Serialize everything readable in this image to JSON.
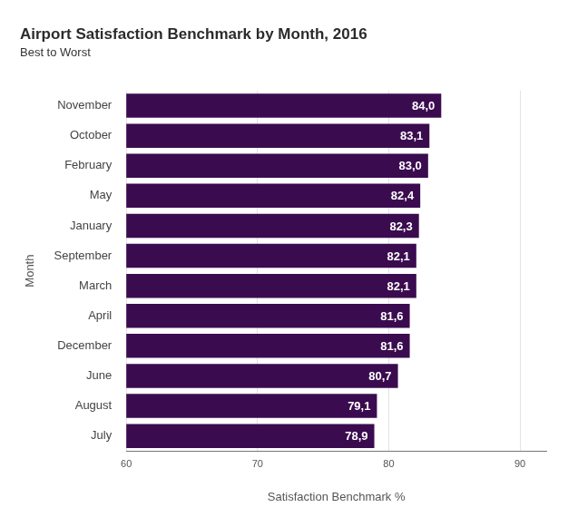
{
  "chart_data": {
    "type": "bar",
    "orientation": "horizontal",
    "title": "Airport Satisfaction Benchmark by Month, 2016",
    "subtitle": "Best to Worst",
    "x_label": "Satisfaction Benchmark %",
    "y_label": "Month",
    "categories": [
      "November",
      "October",
      "February",
      "May",
      "January",
      "September",
      "March",
      "April",
      "December",
      "June",
      "August",
      "July"
    ],
    "values": [
      84.0,
      83.1,
      83.0,
      82.4,
      82.3,
      82.1,
      82.1,
      81.6,
      81.6,
      80.7,
      79.1,
      78.9
    ],
    "value_labels": [
      "84,0",
      "83,1",
      "83,0",
      "82,4",
      "82,3",
      "82,1",
      "82,1",
      "81,6",
      "81,6",
      "80,7",
      "79,1",
      "78,9"
    ],
    "color": "#3b0b4f",
    "xlim": [
      60,
      92
    ],
    "xticks": [
      60,
      70,
      80,
      90
    ],
    "grid": true,
    "data_labels": true
  }
}
